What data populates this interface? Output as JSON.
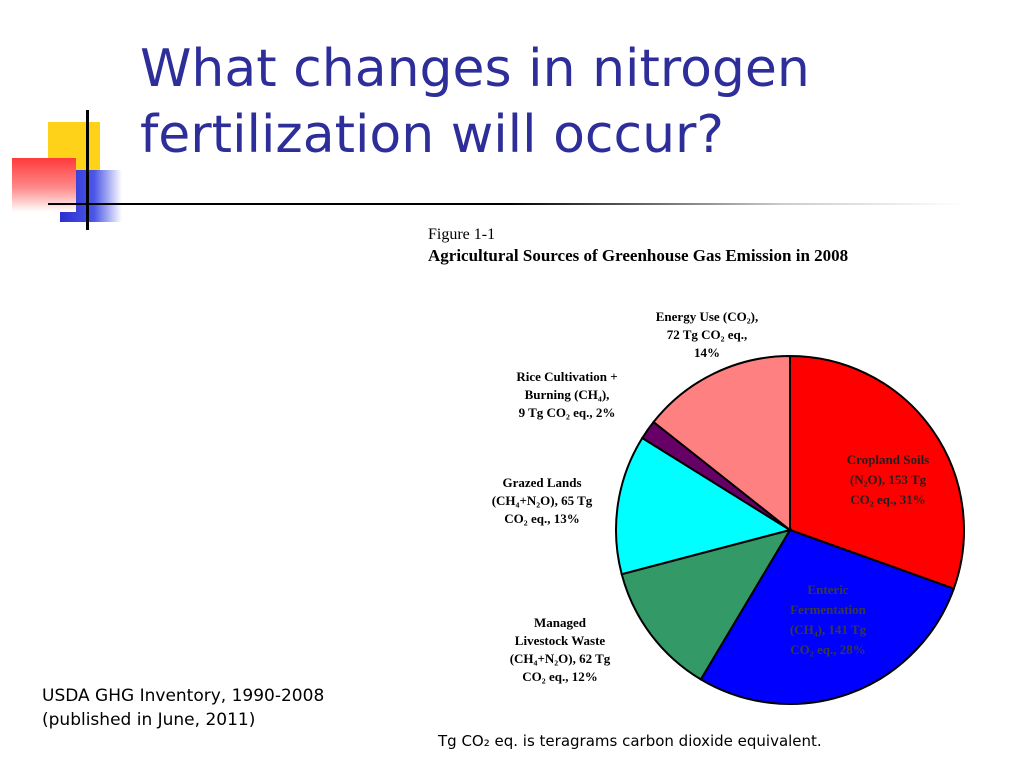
{
  "slide": {
    "title": "What changes in nitrogen fertilization will occur?",
    "source_line1": "USDA GHG Inventory, 1990-2008",
    "source_line2": "(published in June, 2011)",
    "footnote": "Tg CO₂ eq. is teragrams carbon dioxide equivalent."
  },
  "colors": {
    "title": "#2e2e9a",
    "accent_yellow": "#ffd21a",
    "accent_blue": "#2b2fd0",
    "accent_red": "#ff3a3a"
  },
  "chart_data": {
    "type": "pie",
    "figure_label": "Figure 1-1",
    "title": "Agricultural Sources of Greenhouse Gas Emission in 2008",
    "unit": "Tg CO₂ eq.",
    "start_angle_deg": 0,
    "direction": "clockwise",
    "slices": [
      {
        "label": "Cropland Soils (N₂O)",
        "value": 153,
        "percent": 31,
        "color": "#ff0000",
        "label_lines": [
          "Cropland Soils",
          "(N₂O), 153 Tg",
          "CO₂ eq., 31%"
        ]
      },
      {
        "label": "Enteric Fermentation (CH₄)",
        "value": 141,
        "percent": 28,
        "color": "#0000ff",
        "label_lines": [
          "Enteric",
          "Fermentation",
          "(CH₄), 141 Tg",
          "CO₂ eq., 28%"
        ]
      },
      {
        "label": "Managed Livestock Waste (CH₄+N₂O)",
        "value": 62,
        "percent": 12,
        "color": "#339966",
        "label_lines": [
          "Managed",
          "Livestock Waste",
          "(CH₄+N₂O), 62 Tg",
          "CO₂ eq., 12%"
        ]
      },
      {
        "label": "Grazed Lands (CH₄+N₂O)",
        "value": 65,
        "percent": 13,
        "color": "#00ffff",
        "label_lines": [
          "Grazed Lands",
          "(CH₄+N₂O), 65 Tg",
          "CO₂ eq., 13%"
        ]
      },
      {
        "label": "Rice Cultivation + Burning (CH₄)",
        "value": 9,
        "percent": 2,
        "color": "#660066",
        "label_lines": [
          "Rice Cultivation +",
          "Burning (CH₄),",
          "9 Tg CO₂ eq., 2%"
        ]
      },
      {
        "label": "Energy Use (CO₂)",
        "value": 72,
        "percent": 14,
        "color": "#ff8080",
        "label_lines": [
          "Energy Use (CO₂),",
          "72 Tg CO₂ eq.,",
          "14%"
        ]
      }
    ]
  }
}
